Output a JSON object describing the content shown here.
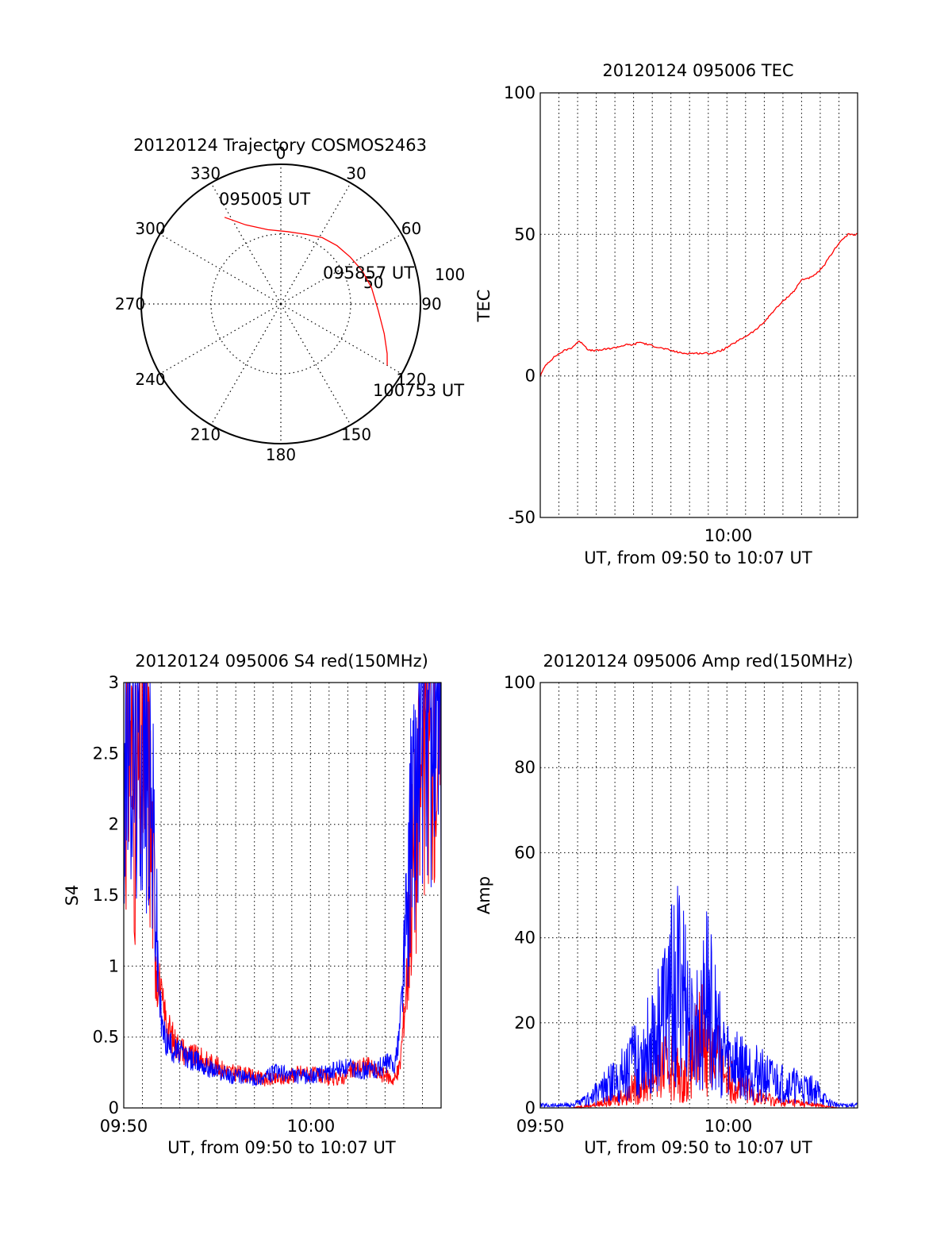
{
  "colors": {
    "red": "#ff0000",
    "blue": "#0000ff",
    "axis": "#000000",
    "grid": "#000000"
  },
  "chart_data": [
    {
      "id": "trajectory",
      "type": "polar",
      "title": "20120124 Trajectory COSMOS2463",
      "azimuth_labels": [
        "0",
        "30",
        "60",
        "90",
        "120",
        "150",
        "180",
        "210",
        "240",
        "270",
        "300",
        "330"
      ],
      "radial_labels": [
        "50",
        "100"
      ],
      "rlim": [
        0,
        100
      ],
      "grid": true,
      "annotations": [
        "095005 UT",
        "095857 UT",
        "100753 UT"
      ],
      "track": [
        {
          "az": 327,
          "r": 74
        },
        {
          "az": 336,
          "r": 62
        },
        {
          "az": 350,
          "r": 54
        },
        {
          "az": 5,
          "r": 52
        },
        {
          "az": 20,
          "r": 53
        },
        {
          "az": 32,
          "r": 56
        },
        {
          "az": 44,
          "r": 58
        },
        {
          "az": 56,
          "r": 60
        },
        {
          "az": 68,
          "r": 63
        },
        {
          "az": 80,
          "r": 66
        },
        {
          "az": 94,
          "r": 70
        },
        {
          "az": 106,
          "r": 77
        },
        {
          "az": 115,
          "r": 84
        },
        {
          "az": 120,
          "r": 88
        }
      ]
    },
    {
      "id": "tec",
      "type": "line",
      "title": "20120124 095006 TEC",
      "xlabel": "UT, from 09:50 to 10:07 UT",
      "ylabel": "TEC",
      "xlim": [
        9.8333,
        10.1167
      ],
      "ylim": [
        -50,
        100
      ],
      "yticks": [
        "-50",
        "0",
        "50",
        "100"
      ],
      "xtick_label": "10:00",
      "grid": true,
      "series": [
        {
          "color": "red",
          "x": [
            9.8333,
            9.8383,
            9.8467,
            9.855,
            9.8617,
            9.8667,
            9.87,
            9.8767,
            9.885,
            9.9,
            9.91,
            9.9167,
            9.9217,
            9.93,
            9.94,
            9.95,
            9.96,
            9.9667,
            9.98,
            9.9867,
            9.995,
            10.0,
            10.0083,
            10.0167,
            10.025,
            10.0333,
            10.0417,
            10.0517,
            10.06,
            10.0667,
            10.0767,
            10.085,
            10.0933,
            10.1,
            10.1083,
            10.1167
          ],
          "y": [
            0,
            4,
            7,
            9,
            10,
            12,
            12,
            9,
            9,
            10,
            11,
            11,
            12,
            11,
            10,
            9,
            8,
            8,
            8,
            8,
            9,
            10,
            12,
            14,
            16,
            19,
            23,
            27,
            30,
            34,
            35,
            38,
            43,
            47,
            50,
            50
          ]
        }
      ]
    },
    {
      "id": "s4",
      "type": "line",
      "title": "20120124 095006 S4 red(150MHz)",
      "xlabel": "UT, from 09:50 to 10:07 UT",
      "ylabel": "S4",
      "xlim": [
        9.8333,
        10.1167
      ],
      "ylim": [
        0,
        3
      ],
      "yticks": [
        "0",
        "0.5",
        "1",
        "1.5",
        "2",
        "2.5",
        "3"
      ],
      "xtick_labels": [
        "09:50",
        "10:00"
      ],
      "grid": true,
      "series": [
        {
          "color": "red",
          "x": [
            9.8333,
            9.8383,
            9.8433,
            9.85,
            9.855,
            9.86,
            9.8633,
            9.8667,
            9.87,
            9.8733,
            9.8767,
            9.88,
            9.885,
            9.89,
            9.9,
            9.91,
            9.92,
            9.93,
            9.94,
            9.95,
            9.96,
            9.97,
            9.98,
            9.99,
            10.0,
            10.01,
            10.02,
            10.03,
            10.04,
            10.05,
            10.06,
            10.07,
            10.0733,
            10.0767,
            10.08,
            10.085,
            10.09,
            10.1,
            10.11,
            10.1167
          ],
          "y": [
            2.2,
            2.8,
            2.0,
            2.6,
            2.4,
            1.6,
            1.0,
            0.75,
            0.65,
            0.55,
            0.5,
            0.45,
            0.42,
            0.38,
            0.35,
            0.32,
            0.28,
            0.25,
            0.24,
            0.22,
            0.2,
            0.2,
            0.22,
            0.25,
            0.24,
            0.22,
            0.2,
            0.22,
            0.28,
            0.3,
            0.25,
            0.22,
            0.2,
            0.22,
            0.3,
            0.8,
            1.6,
            2.4,
            2.8,
            2.6
          ]
        },
        {
          "color": "blue",
          "x": [
            9.8333,
            9.8383,
            9.8433,
            9.85,
            9.855,
            9.86,
            9.8633,
            9.8667,
            9.87,
            9.8733,
            9.8767,
            9.88,
            9.885,
            9.89,
            9.9,
            9.91,
            9.92,
            9.93,
            9.94,
            9.95,
            9.96,
            9.97,
            9.98,
            9.99,
            10.0,
            10.01,
            10.02,
            10.03,
            10.04,
            10.05,
            10.06,
            10.07,
            10.0733,
            10.0767,
            10.08,
            10.085,
            10.09,
            10.1,
            10.11,
            10.1167
          ],
          "y": [
            2.4,
            2.7,
            2.5,
            2.6,
            2.3,
            1.9,
            1.1,
            0.6,
            0.5,
            0.45,
            0.42,
            0.4,
            0.38,
            0.35,
            0.32,
            0.28,
            0.25,
            0.22,
            0.22,
            0.2,
            0.22,
            0.25,
            0.24,
            0.22,
            0.22,
            0.24,
            0.26,
            0.28,
            0.27,
            0.26,
            0.28,
            0.32,
            0.3,
            0.35,
            0.6,
            1.2,
            2.0,
            2.6,
            2.7,
            2.5
          ]
        }
      ]
    },
    {
      "id": "amp",
      "type": "line",
      "title": "20120124 095006 Amp red(150MHz)",
      "xlabel": "UT, from 09:50 to 10:07 UT",
      "ylabel": "Amp",
      "xlim": [
        9.8333,
        10.1167
      ],
      "ylim": [
        0,
        100
      ],
      "yticks": [
        "0",
        "20",
        "40",
        "60",
        "80",
        "100"
      ],
      "xtick_labels": [
        "09:50",
        "10:00"
      ],
      "grid": true,
      "series": [
        {
          "color": "red",
          "x": [
            9.8333,
            9.85,
            9.86,
            9.87,
            9.88,
            9.89,
            9.9,
            9.91,
            9.92,
            9.93,
            9.94,
            9.95,
            9.96,
            9.97,
            9.98,
            9.99,
            10.0,
            10.01,
            10.02,
            10.03,
            10.04,
            10.05,
            10.06,
            10.07,
            10.08,
            10.09,
            10.1,
            10.1167
          ],
          "y": [
            0,
            0,
            0,
            0.5,
            1,
            2,
            3,
            5,
            8,
            10,
            14,
            16,
            10,
            18,
            28,
            20,
            12,
            8,
            6,
            4,
            3,
            2,
            2,
            1.5,
            1,
            0.5,
            0,
            0
          ]
        },
        {
          "color": "blue",
          "x": [
            9.8333,
            9.85,
            9.86,
            9.87,
            9.88,
            9.89,
            9.9,
            9.91,
            9.92,
            9.93,
            9.94,
            9.95,
            9.96,
            9.97,
            9.98,
            9.99,
            10.0,
            10.01,
            10.02,
            10.03,
            10.04,
            10.05,
            10.06,
            10.07,
            10.08,
            10.09,
            10.1,
            10.1167
          ],
          "y": [
            1,
            1,
            1,
            2,
            4,
            7,
            10,
            14,
            18,
            22,
            30,
            40,
            46,
            22,
            44,
            28,
            18,
            16,
            14,
            12,
            10,
            9,
            8,
            7,
            6,
            2,
            1,
            1
          ]
        }
      ]
    }
  ]
}
